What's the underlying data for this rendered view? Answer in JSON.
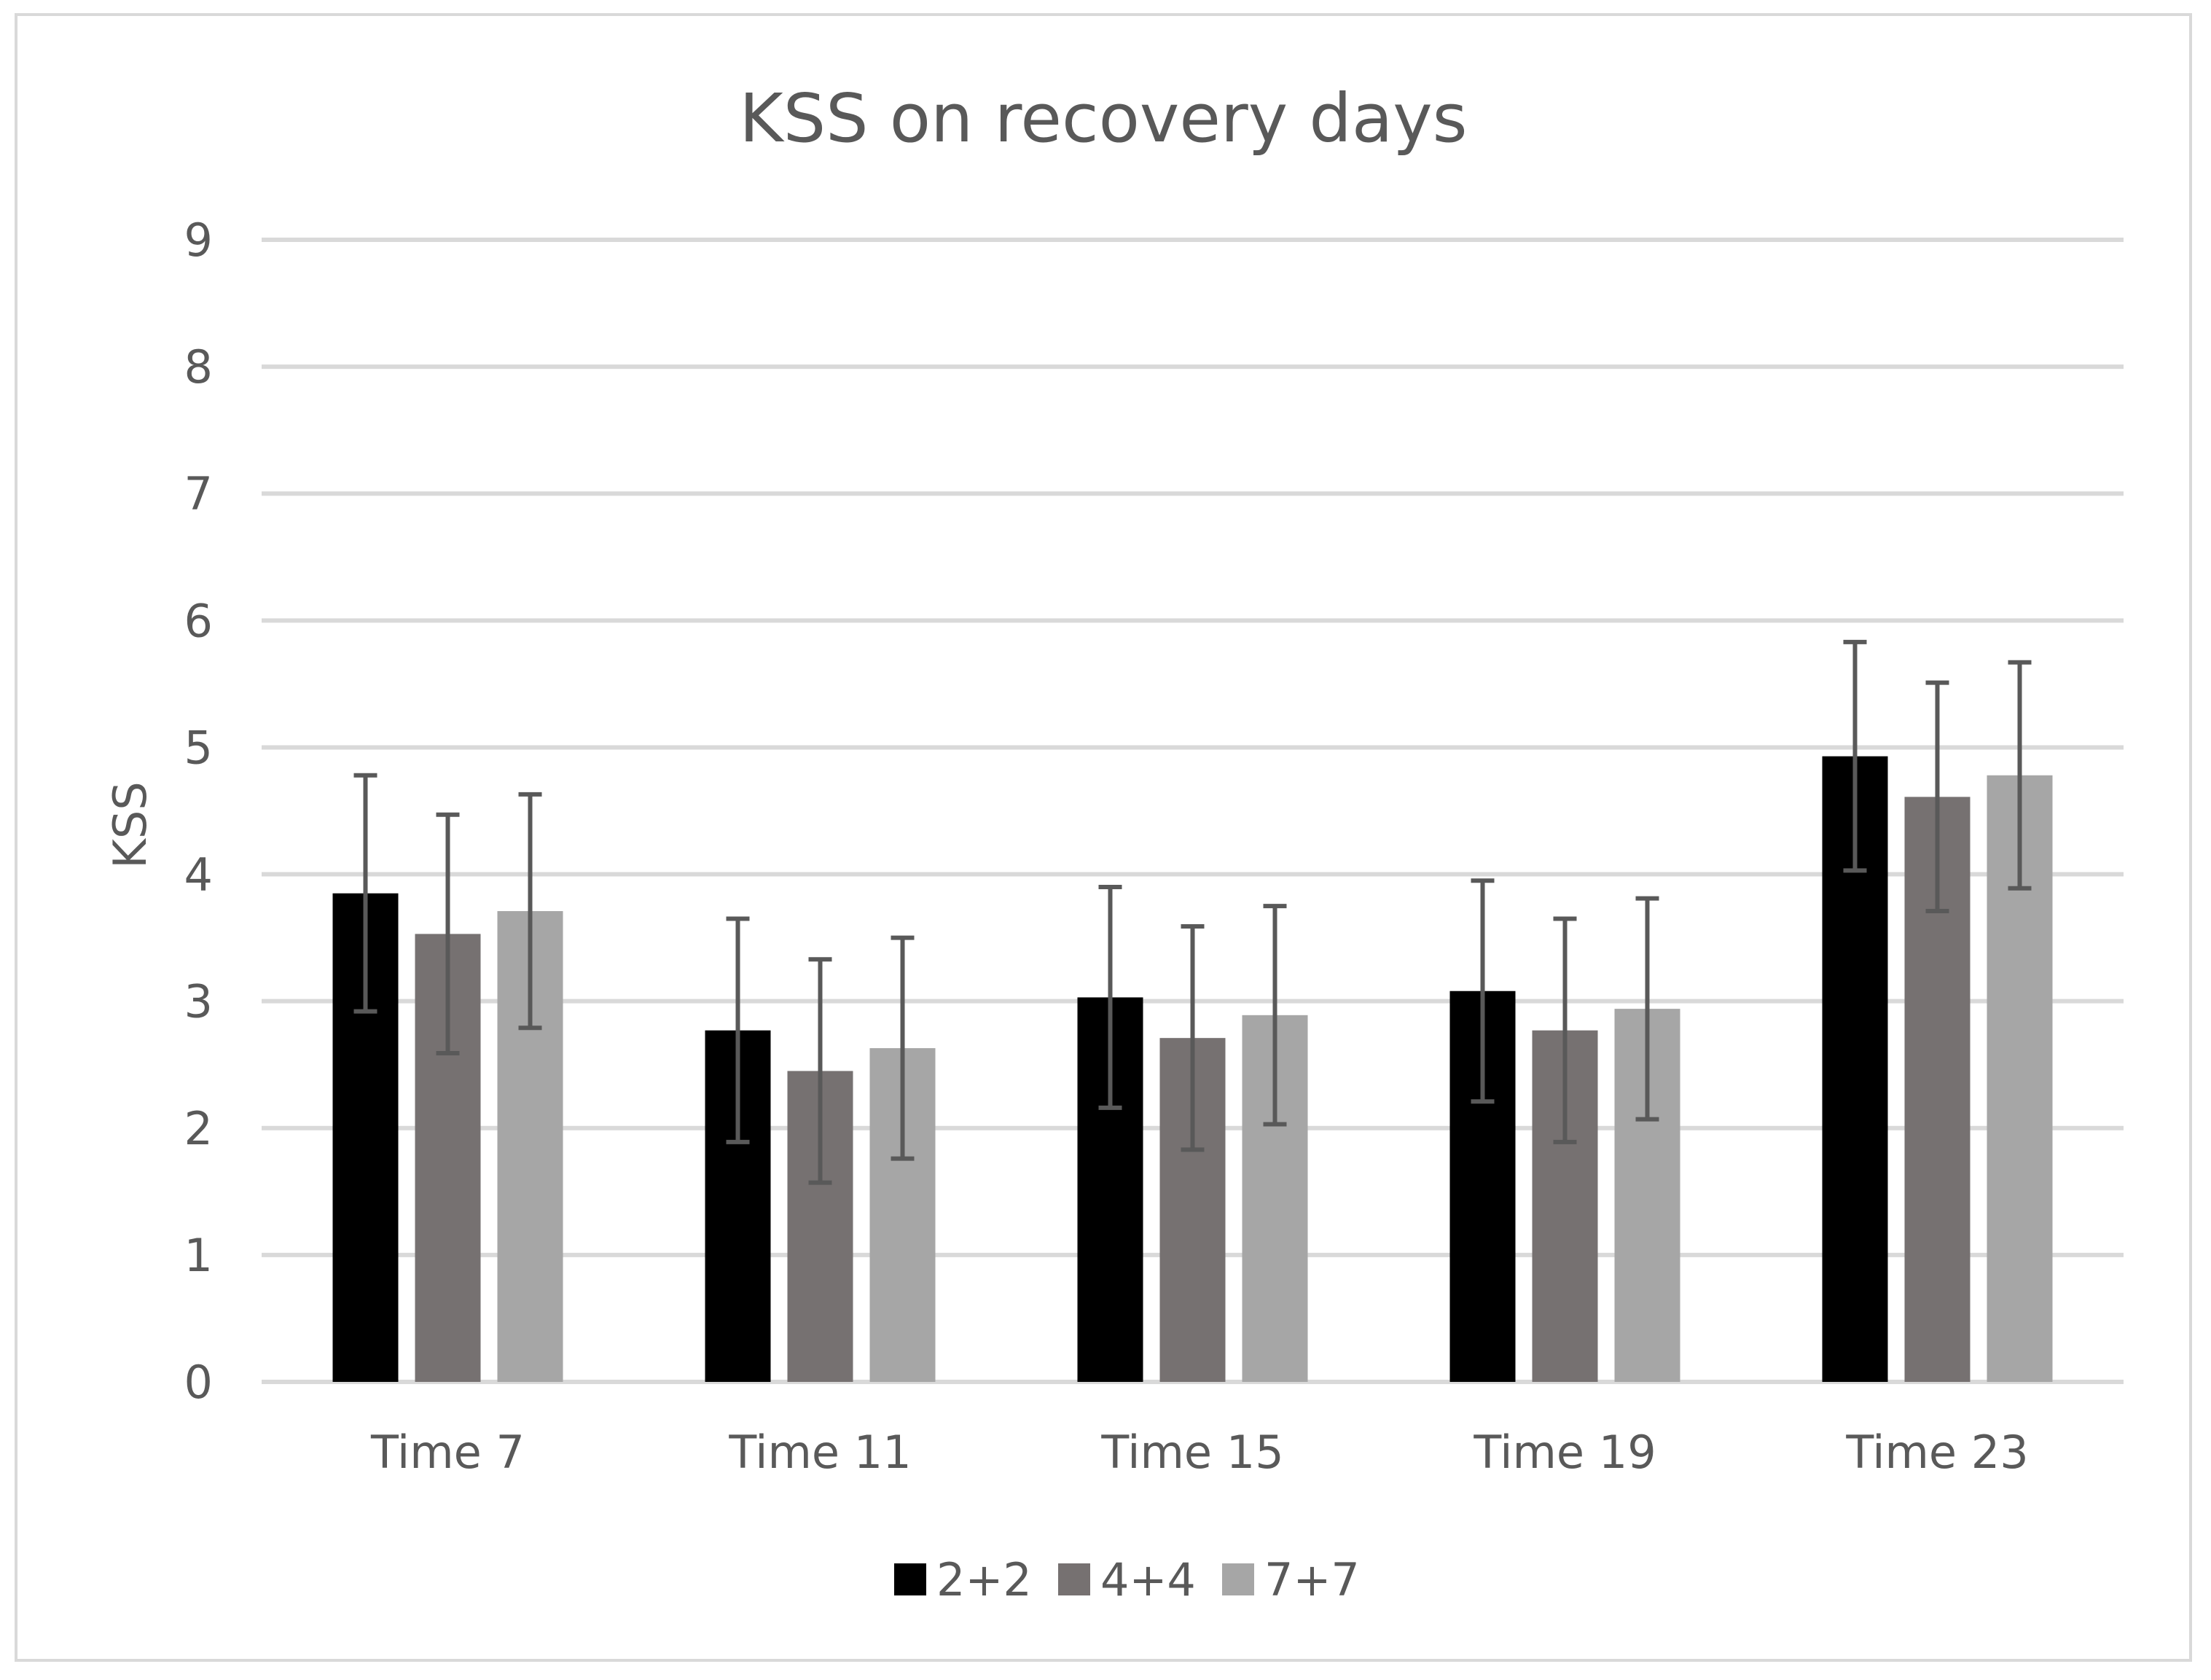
{
  "chart_data": {
    "type": "bar",
    "title": "KSS on recovery days",
    "xlabel": "",
    "ylabel": "KSS",
    "ylim": [
      0,
      9
    ],
    "yticks": [
      "0",
      "1",
      "2",
      "3",
      "4",
      "5",
      "6",
      "7",
      "8",
      "9"
    ],
    "grid": true,
    "legend_position": "bottom",
    "categories": [
      "Time 7",
      "Time 11",
      "Time 15",
      "Time 19",
      "Time 23"
    ],
    "series": [
      {
        "name": "2+2",
        "color": "#000000",
        "values": [
          3.85,
          2.77,
          3.03,
          3.08,
          4.93
        ],
        "error": [
          0.93,
          0.88,
          0.87,
          0.87,
          0.9
        ]
      },
      {
        "name": "4+4",
        "color": "#767171",
        "values": [
          3.53,
          2.45,
          2.71,
          2.77,
          4.61
        ],
        "error": [
          0.94,
          0.88,
          0.88,
          0.88,
          0.9
        ]
      },
      {
        "name": "7+7",
        "color": "#a6a6a6",
        "values": [
          3.71,
          2.63,
          2.89,
          2.94,
          4.78
        ],
        "error": [
          0.92,
          0.87,
          0.86,
          0.87,
          0.89
        ]
      }
    ],
    "colors": {
      "grid": "#d9d9d9",
      "error_bar": "#595959",
      "text": "#595959"
    }
  }
}
